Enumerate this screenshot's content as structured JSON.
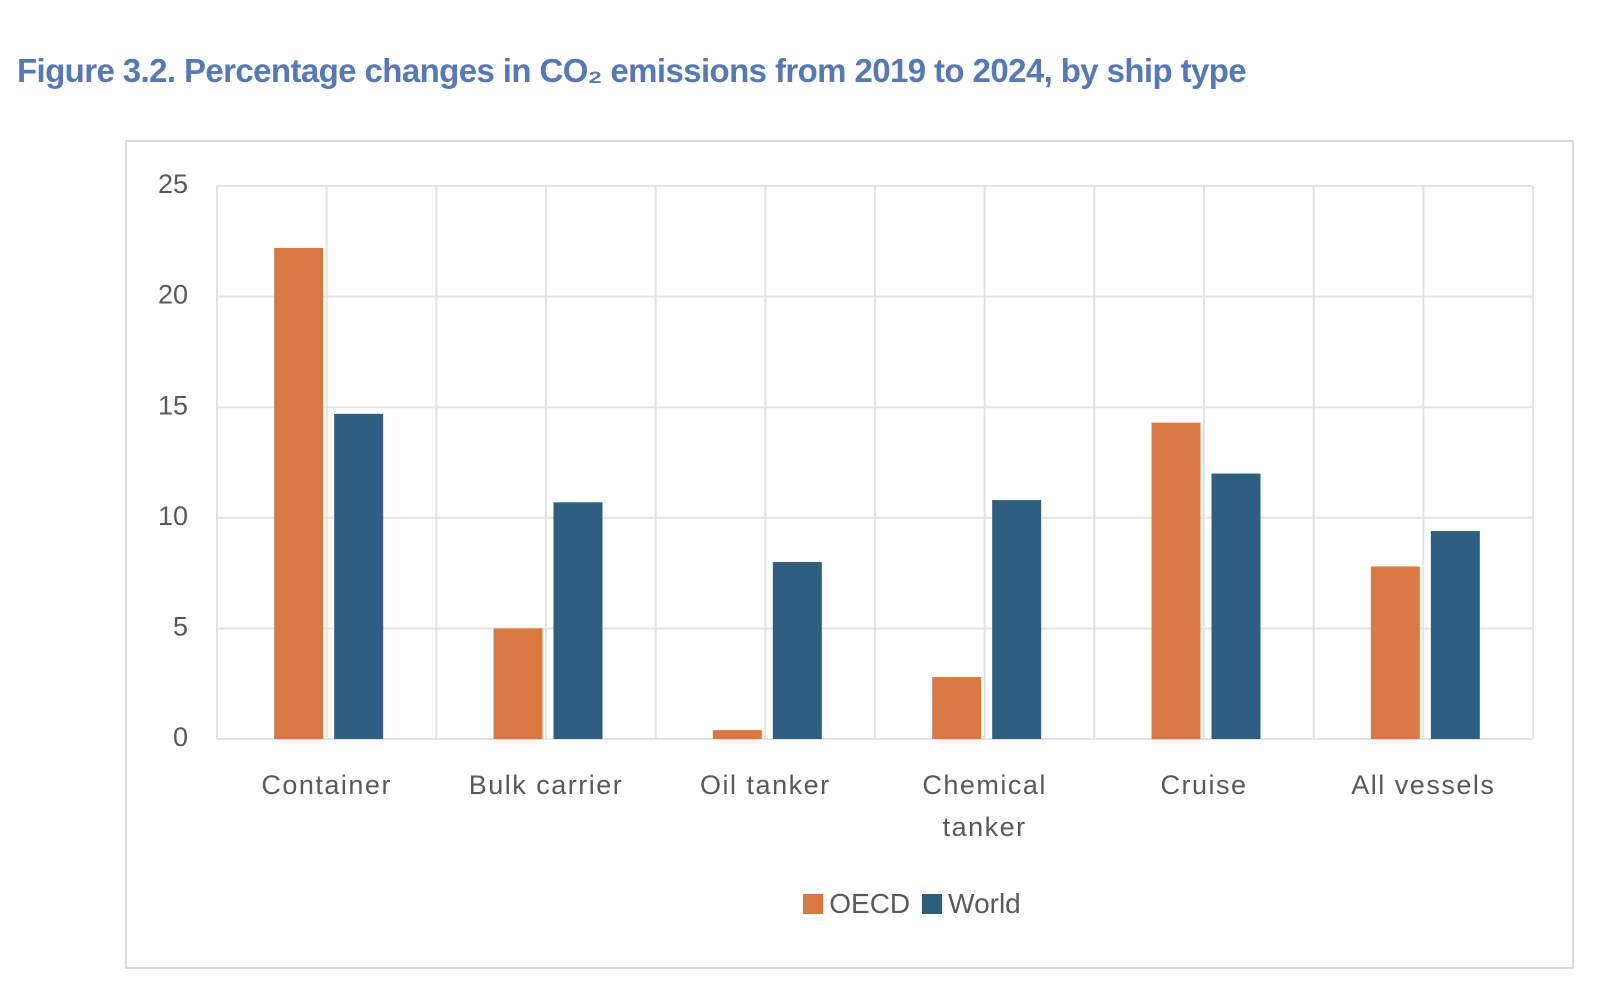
{
  "chart_data": {
    "type": "bar",
    "title": "Figure  3.2. Percentage changes in CO₂ emissions from 2019 to 2024, by ship type",
    "categories": [
      "Container",
      "Bulk carrier",
      "Oil tanker",
      "Chemical tanker",
      "Cruise",
      "All vessels"
    ],
    "series": [
      {
        "name": "OECD",
        "color": "#d97840",
        "values": [
          22.2,
          5.0,
          0.4,
          2.8,
          14.3,
          7.8
        ]
      },
      {
        "name": "World",
        "color": "#2e5f80",
        "values": [
          14.7,
          10.7,
          8.0,
          10.8,
          12.0,
          9.4
        ]
      }
    ],
    "ylim": [
      0,
      25
    ],
    "yticks": [
      0,
      5,
      10,
      15,
      20,
      25
    ],
    "grid": true,
    "legend": "bottom"
  }
}
